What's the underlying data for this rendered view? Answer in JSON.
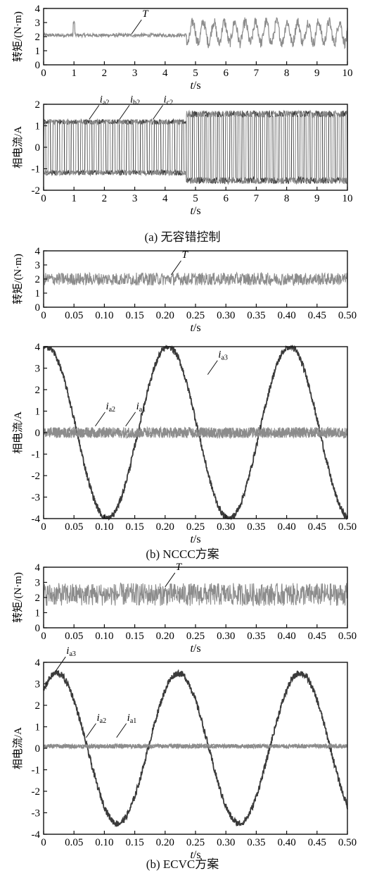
{
  "colors": {
    "light_trace": "#8c8c8c",
    "dark_trace": "#3a3a3a",
    "axis": "#111111"
  },
  "captions": [
    "(a) 无容错控制",
    "(b) NCCC方案",
    "(b) ECVC方案"
  ],
  "chart_data": [
    {
      "type": "line",
      "ylabel": "转矩/(N·m)",
      "xlabel": "t/s",
      "xlim": [
        0,
        10
      ],
      "ylim": [
        0,
        4
      ],
      "xticks": [
        "0",
        "1",
        "2",
        "3",
        "4",
        "5",
        "6",
        "7",
        "8",
        "9",
        "10"
      ],
      "yticks": [
        "0",
        "1",
        "2",
        "3",
        "4"
      ],
      "series": [
        {
          "name": "T",
          "color": "#8c8c8c",
          "x": [
            0,
            1,
            2,
            3,
            4,
            4.7,
            4.75,
            5,
            6,
            7,
            8,
            9,
            10
          ],
          "y": [
            2.1,
            2.15,
            2.1,
            2.15,
            2.1,
            2.1,
            2.2,
            2.3,
            2.3,
            2.3,
            2.3,
            2.3,
            2.3
          ],
          "ripple_before_4_7": 0.25,
          "ripple_after_4_7": 0.75
        }
      ],
      "annotations": [
        {
          "text": "T",
          "at": [
            2.9,
            2.2
          ]
        }
      ]
    },
    {
      "type": "line",
      "ylabel": "相电流/A",
      "xlabel": "t/s",
      "xlim": [
        0,
        10
      ],
      "ylim": [
        -2,
        2
      ],
      "xticks": [
        "0",
        "1",
        "2",
        "3",
        "4",
        "5",
        "6",
        "7",
        "8",
        "9",
        "10"
      ],
      "yticks": [
        "-2",
        "-1",
        "0",
        "1",
        "2"
      ],
      "series": [
        {
          "name": "ia2",
          "amplitude_before": 1.3,
          "amplitude_after": 1.7,
          "switch_t": 4.7
        },
        {
          "name": "ib2",
          "amplitude_before": 1.3,
          "amplitude_after": 1.7,
          "switch_t": 4.7
        },
        {
          "name": "ic2",
          "amplitude_before": 1.3,
          "amplitude_after": 1.7,
          "switch_t": 4.7
        }
      ],
      "annotations": [
        {
          "text": "i",
          "sub": "a2",
          "at": [
            1.5,
            1.3
          ]
        },
        {
          "text": "i",
          "sub": "b2",
          "at": [
            2.5,
            1.3
          ]
        },
        {
          "text": "i",
          "sub": "c2",
          "at": [
            3.6,
            1.3
          ]
        }
      ]
    },
    {
      "type": "line",
      "ylabel": "转矩/(N·m)",
      "xlabel": "t/s",
      "xlim": [
        0,
        0.5
      ],
      "ylim": [
        0,
        4
      ],
      "xticks": [
        "0",
        "0.05",
        "0.10",
        "0.15",
        "0.20",
        "0.25",
        "0.30",
        "0.35",
        "0.40",
        "0.45",
        "0.50"
      ],
      "yticks": [
        "0",
        "1",
        "2",
        "3",
        "4"
      ],
      "series": [
        {
          "name": "T",
          "mean": 2.0,
          "ripple": 0.45
        }
      ],
      "annotations": [
        {
          "text": "T",
          "at": [
            0.21,
            2.3
          ]
        }
      ]
    },
    {
      "type": "line",
      "ylabel": "相电流/A",
      "xlabel": "t/s",
      "xlim": [
        0,
        0.5
      ],
      "ylim": [
        -4,
        4
      ],
      "xticks": [
        "0",
        "0.05",
        "0.10",
        "0.15",
        "0.20",
        "0.25",
        "0.30",
        "0.35",
        "0.40",
        "0.45",
        "0.50"
      ],
      "yticks": [
        "-4",
        "-3",
        "-2",
        "-1",
        "0",
        "1",
        "2",
        "3",
        "4"
      ],
      "series": [
        {
          "name": "ia3",
          "amplitude": 4.0,
          "period": 0.2,
          "peak_t": 0.005
        },
        {
          "name": "ia2",
          "mean": 0.0,
          "ripple": 0.25
        },
        {
          "name": "ia1",
          "mean": 0.0,
          "ripple": 0.25
        }
      ],
      "annotations": [
        {
          "text": "i",
          "sub": "a3",
          "at": [
            0.27,
            2.7
          ]
        },
        {
          "text": "i",
          "sub": "a2",
          "at": [
            0.085,
            0.3
          ]
        },
        {
          "text": "i",
          "sub": "a1",
          "at": [
            0.135,
            0.3
          ]
        }
      ]
    },
    {
      "type": "line",
      "ylabel": "转矩/(N·m)",
      "xlabel": "t/s",
      "xlim": [
        0,
        0.5
      ],
      "ylim": [
        0,
        4
      ],
      "xticks": [
        "0",
        "0.05",
        "0.10",
        "0.15",
        "0.20",
        "0.25",
        "0.30",
        "0.35",
        "0.40",
        "0.45",
        "0.50"
      ],
      "yticks": [
        "0",
        "1",
        "2",
        "3",
        "4"
      ],
      "series": [
        {
          "name": "T",
          "mean": 2.2,
          "ripple": 0.75
        }
      ],
      "annotations": [
        {
          "text": "T",
          "at": [
            0.2,
            2.7
          ]
        }
      ]
    },
    {
      "type": "line",
      "ylabel": "相电流/A",
      "xlabel": "t/s",
      "xlim": [
        0,
        0.5
      ],
      "ylim": [
        -4,
        4
      ],
      "xticks": [
        "0",
        "0.05",
        "0.10",
        "0.15",
        "0.20",
        "0.25",
        "0.30",
        "0.35",
        "0.40",
        "0.45",
        "0.50"
      ],
      "yticks": [
        "-4",
        "-3",
        "-2",
        "-1",
        "0",
        "1",
        "2",
        "3",
        "4"
      ],
      "series": [
        {
          "name": "ia3",
          "amplitude": 3.5,
          "period": 0.2,
          "peak_t": 0.022
        },
        {
          "name": "ia2",
          "mean": 0.1,
          "ripple": 0.1
        },
        {
          "name": "ia1",
          "mean": 0.1,
          "ripple": 0.1
        }
      ],
      "annotations": [
        {
          "text": "i",
          "sub": "a3",
          "at": [
            0.02,
            3.6
          ]
        },
        {
          "text": "i",
          "sub": "a2",
          "at": [
            0.07,
            0.5
          ]
        },
        {
          "text": "i",
          "sub": "a1",
          "at": [
            0.12,
            0.5
          ]
        }
      ]
    }
  ]
}
